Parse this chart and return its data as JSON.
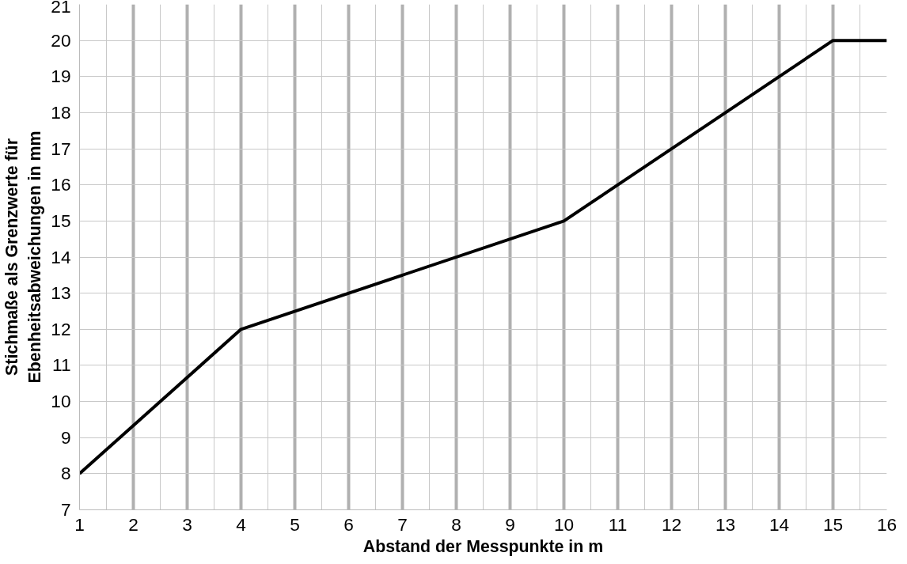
{
  "chart_data": {
    "type": "line",
    "xlabel": "Abstand der Messpunkte in m",
    "ylabel": "Stichmaße als Grenzwerte für\nEbenheitsabweichungen in mm",
    "x": [
      1,
      4,
      10,
      15,
      16
    ],
    "series": [
      {
        "color": "#000000",
        "values": [
          8,
          12,
          15,
          20,
          20
        ]
      }
    ],
    "xlim": [
      1,
      16
    ],
    "ylim": [
      7,
      21
    ],
    "xticks": [
      1,
      2,
      3,
      4,
      5,
      6,
      7,
      8,
      9,
      10,
      11,
      12,
      13,
      14,
      15,
      16
    ],
    "yticks": [
      7,
      8,
      9,
      10,
      11,
      12,
      13,
      14,
      15,
      16,
      17,
      18,
      19,
      20,
      21
    ],
    "grid": true,
    "marker": "none",
    "line_style": "solid"
  }
}
